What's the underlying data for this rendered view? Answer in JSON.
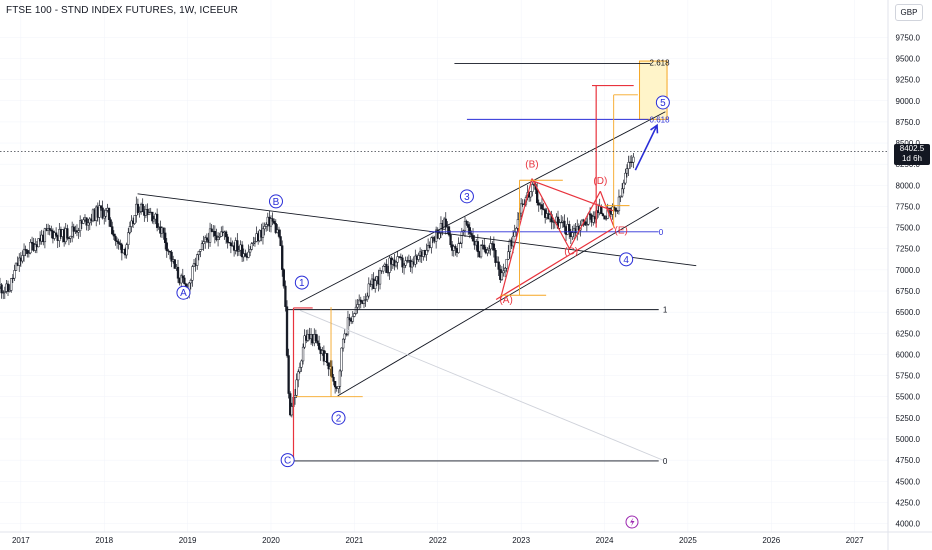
{
  "header": {
    "title": "FTSE 100 - STND INDEX FUTURES, 1W, ICEEUR",
    "currency": "GBP"
  },
  "last_price": {
    "value": "8402.5",
    "countdown": "1d 6h"
  },
  "colors": {
    "blue": "#2a2ed8",
    "red": "#e8333d",
    "orange": "#f5a623",
    "black": "#131722",
    "box_fill": "#fff4c9",
    "grid": "#f0f3fa"
  },
  "chart_data": {
    "type": "candlestick",
    "x_axis": {
      "ticks": [
        "2017",
        "2018",
        "2019",
        "2020",
        "2021",
        "2022",
        "2023",
        "2024",
        "2025",
        "2026",
        "2027"
      ]
    },
    "y_axis": {
      "ticks": [
        4000,
        4250,
        4500,
        4750,
        5000,
        5250,
        5500,
        5750,
        6000,
        6250,
        6500,
        6750,
        7000,
        7250,
        7500,
        7750,
        8000,
        8250,
        8500,
        8750,
        9000,
        9250,
        9500,
        9750
      ],
      "range": [
        3900,
        10050
      ]
    },
    "price_path": [
      [
        2016.75,
        6800
      ],
      [
        2016.85,
        6750
      ],
      [
        2016.95,
        7050
      ],
      [
        2017.05,
        7200
      ],
      [
        2017.2,
        7350
      ],
      [
        2017.35,
        7450
      ],
      [
        2017.5,
        7400
      ],
      [
        2017.65,
        7480
      ],
      [
        2017.8,
        7600
      ],
      [
        2017.95,
        7700
      ],
      [
        2018.05,
        7650
      ],
      [
        2018.15,
        7300
      ],
      [
        2018.25,
        7250
      ],
      [
        2018.4,
        7750
      ],
      [
        2018.55,
        7700
      ],
      [
        2018.7,
        7450
      ],
      [
        2018.85,
        7000
      ],
      [
        2018.99,
        6750
      ],
      [
        2019.1,
        7100
      ],
      [
        2019.25,
        7400
      ],
      [
        2019.4,
        7450
      ],
      [
        2019.55,
        7300
      ],
      [
        2019.7,
        7200
      ],
      [
        2019.85,
        7400
      ],
      [
        2020.0,
        7600
      ],
      [
        2020.1,
        7400
      ],
      [
        2020.17,
        6600
      ],
      [
        2020.22,
        5300
      ],
      [
        2020.3,
        5600
      ],
      [
        2020.4,
        6200
      ],
      [
        2020.5,
        6200
      ],
      [
        2020.65,
        5950
      ],
      [
        2020.8,
        5600
      ],
      [
        2020.87,
        6250
      ],
      [
        2020.99,
        6500
      ],
      [
        2021.2,
        6800
      ],
      [
        2021.45,
        7100
      ],
      [
        2021.7,
        7050
      ],
      [
        2021.95,
        7400
      ],
      [
        2022.1,
        7550
      ],
      [
        2022.2,
        7200
      ],
      [
        2022.35,
        7550
      ],
      [
        2022.5,
        7200
      ],
      [
        2022.65,
        7350
      ],
      [
        2022.75,
        6850
      ],
      [
        2022.9,
        7400
      ],
      [
        2023.0,
        7800
      ],
      [
        2023.15,
        7950
      ],
      [
        2023.25,
        7700
      ],
      [
        2023.45,
        7550
      ],
      [
        2023.6,
        7450
      ],
      [
        2023.8,
        7600
      ],
      [
        2023.95,
        7700
      ],
      [
        2024.05,
        7650
      ],
      [
        2024.15,
        7700
      ],
      [
        2024.25,
        8100
      ],
      [
        2024.35,
        8402.5
      ]
    ],
    "wave_labels": [
      {
        "text": "A",
        "x": 2018.95,
        "y": 6730,
        "style": "circle",
        "color": "blue"
      },
      {
        "text": "B",
        "x": 2020.06,
        "y": 7810,
        "style": "circle",
        "color": "blue"
      },
      {
        "text": "C",
        "x": 2020.2,
        "y": 4750,
        "style": "circle",
        "color": "blue"
      },
      {
        "text": "1",
        "x": 2020.37,
        "y": 6850,
        "style": "circle",
        "color": "blue"
      },
      {
        "text": "2",
        "x": 2020.81,
        "y": 5250,
        "style": "circle",
        "color": "blue"
      },
      {
        "text": "3",
        "x": 2022.35,
        "y": 7870,
        "style": "circle",
        "color": "blue"
      },
      {
        "text": "4",
        "x": 2024.26,
        "y": 7125,
        "style": "circle",
        "color": "blue"
      },
      {
        "text": "5",
        "x": 2024.7,
        "y": 8980,
        "style": "circle",
        "color": "blue"
      },
      {
        "text": "(A)",
        "x": 2022.82,
        "y": 6650,
        "style": "paren",
        "color": "red"
      },
      {
        "text": "(B)",
        "x": 2023.13,
        "y": 8250,
        "style": "paren",
        "color": "red"
      },
      {
        "text": "(C)",
        "x": 2023.6,
        "y": 7225,
        "style": "paren",
        "color": "red"
      },
      {
        "text": "(D)",
        "x": 2023.95,
        "y": 8060,
        "style": "paren",
        "color": "red"
      },
      {
        "text": "(E)",
        "x": 2024.2,
        "y": 7470,
        "style": "paren",
        "color": "red"
      }
    ],
    "fib_labels": [
      {
        "text": "2.618",
        "x": 2024.54,
        "y": 9450,
        "color": "black"
      },
      {
        "text": "0.618",
        "x": 2024.54,
        "y": 8780,
        "color": "blue"
      },
      {
        "text": "0",
        "x": 2024.65,
        "y": 7450,
        "color": "blue"
      },
      {
        "text": "1",
        "x": 2024.7,
        "y": 6530,
        "color": "black"
      },
      {
        "text": "0",
        "x": 2024.7,
        "y": 4740,
        "color": "black"
      }
    ],
    "lines": [
      {
        "x1": 2018.4,
        "y1": 7900,
        "x2": 2025.1,
        "y2": 7050,
        "color": "black"
      },
      {
        "x1": 2020.35,
        "y1": 6620,
        "x2": 2024.73,
        "y2": 8870,
        "color": "black"
      },
      {
        "x1": 2020.8,
        "y1": 5510,
        "x2": 2024.65,
        "y2": 7740,
        "color": "black"
      },
      {
        "x1": 2020.35,
        "y1": 6520,
        "x2": 2024.7,
        "y2": 4750,
        "color": "lightgray"
      },
      {
        "x1": 2020.2,
        "y1": 6530,
        "x2": 2024.65,
        "y2": 6530,
        "color": "black"
      },
      {
        "x1": 2020.2,
        "y1": 4740,
        "x2": 2024.65,
        "y2": 4740,
        "color": "black"
      },
      {
        "x1": 2022.2,
        "y1": 9440,
        "x2": 2024.55,
        "y2": 9440,
        "color": "black"
      },
      {
        "x1": 2022.35,
        "y1": 8780,
        "x2": 2024.53,
        "y2": 8780,
        "color": "blue"
      },
      {
        "x1": 2021.9,
        "y1": 7450,
        "x2": 2024.65,
        "y2": 7450,
        "color": "blue"
      },
      {
        "x1": 2022.75,
        "y1": 6650,
        "x2": 2023.13,
        "y2": 8080,
        "color": "red"
      },
      {
        "x1": 2023.13,
        "y1": 8080,
        "x2": 2023.58,
        "y2": 7250,
        "color": "red"
      },
      {
        "x1": 2023.58,
        "y1": 7250,
        "x2": 2023.95,
        "y2": 7930,
        "color": "red"
      },
      {
        "x1": 2023.95,
        "y1": 7930,
        "x2": 2024.12,
        "y2": 7490,
        "color": "red"
      },
      {
        "x1": 2022.7,
        "y1": 6650,
        "x2": 2024.1,
        "y2": 7490,
        "color": "red"
      },
      {
        "x1": 2023.12,
        "y1": 8060,
        "x2": 2024.1,
        "y2": 7700,
        "color": "red"
      },
      {
        "x1": 2020.27,
        "y1": 4740,
        "x2": 2020.27,
        "y2": 6550,
        "color": "red"
      },
      {
        "x1": 2020.27,
        "y1": 6550,
        "x2": 2020.5,
        "y2": 6550,
        "color": "red"
      },
      {
        "x1": 2023.9,
        "y1": 7500,
        "x2": 2023.9,
        "y2": 9180,
        "color": "red"
      },
      {
        "x1": 2023.85,
        "y1": 9180,
        "x2": 2024.35,
        "y2": 9180,
        "color": "red"
      },
      {
        "x1": 2020.72,
        "y1": 5500,
        "x2": 2020.72,
        "y2": 6560,
        "color": "orange"
      },
      {
        "x1": 2020.3,
        "y1": 5500,
        "x2": 2021.1,
        "y2": 5500,
        "color": "orange"
      },
      {
        "x1": 2022.75,
        "y1": 6700,
        "x2": 2023.3,
        "y2": 6700,
        "color": "orange"
      },
      {
        "x1": 2022.98,
        "y1": 6700,
        "x2": 2022.98,
        "y2": 8060,
        "color": "orange"
      },
      {
        "x1": 2022.98,
        "y1": 8060,
        "x2": 2023.5,
        "y2": 8060,
        "color": "orange"
      },
      {
        "x1": 2024.11,
        "y1": 7500,
        "x2": 2024.11,
        "y2": 9070,
        "color": "orange"
      },
      {
        "x1": 2024.11,
        "y1": 9070,
        "x2": 2024.4,
        "y2": 9070,
        "color": "orange"
      },
      {
        "x1": 2024.0,
        "y1": 7760,
        "x2": 2024.3,
        "y2": 7760,
        "color": "orange"
      }
    ],
    "target_box": {
      "x1": 2024.42,
      "y1": 9470,
      "x2": 2024.75,
      "y2": 8780
    },
    "projection_arrow": {
      "x1": 2024.37,
      "y1": 8180,
      "x2": 2024.63,
      "y2": 8710
    }
  }
}
